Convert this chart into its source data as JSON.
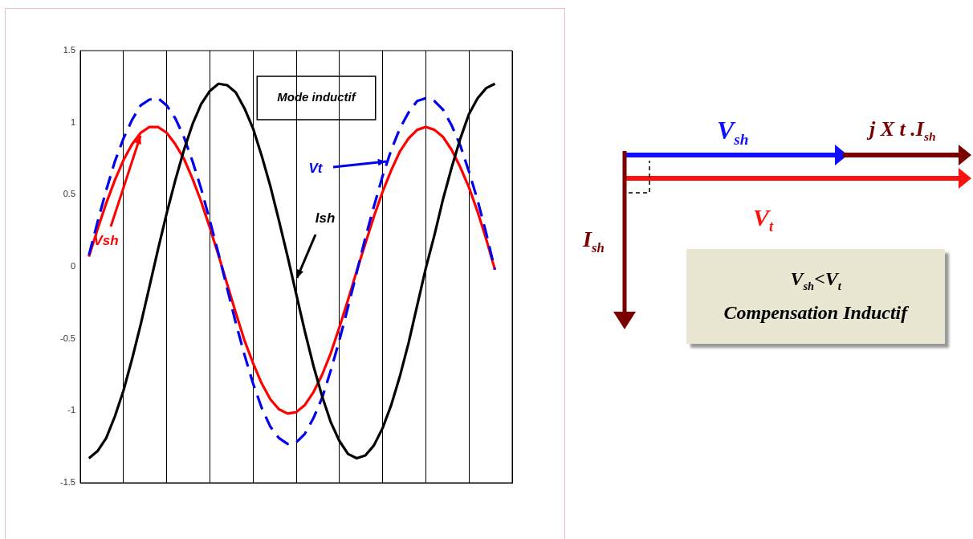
{
  "chart_data": {
    "type": "line",
    "categories": [
      null,
      null,
      null,
      null,
      null,
      null,
      null,
      null,
      null,
      null,
      null,
      null,
      null,
      null,
      null,
      null,
      null,
      null,
      null,
      null,
      null,
      null,
      null,
      null,
      null,
      null,
      null,
      null,
      null,
      null,
      null,
      null,
      null,
      null,
      null,
      null,
      null,
      null,
      null,
      null,
      null,
      null,
      null,
      null,
      null,
      null,
      null,
      null,
      null,
      null,
      null
    ],
    "ylim": [
      -1.5,
      1.5
    ],
    "yticks": [
      -1.5,
      -1,
      -0.5,
      0,
      0.5,
      1,
      1.5
    ],
    "tick_labels": "y",
    "grid": "x",
    "legend": false,
    "marker": "none",
    "series": [
      {
        "color": "#000000",
        "line_style": "solid",
        "values": [
          null,
          -1.33,
          -1.28,
          -1.19,
          -1.04,
          -0.86,
          -0.64,
          -0.4,
          -0.14,
          0.12,
          0.37,
          0.6,
          0.81,
          0.99,
          1.13,
          1.22,
          1.27,
          1.26,
          1.21,
          1.1,
          0.96,
          0.77,
          0.56,
          0.32,
          0.07,
          -0.19,
          -0.45,
          -0.69,
          -0.9,
          -1.08,
          -1.21,
          -1.3,
          -1.33,
          -1.31,
          -1.24,
          -1.12,
          -0.96,
          -0.76,
          -0.53,
          -0.27,
          -0.01,
          0.22,
          0.47,
          0.69,
          0.89,
          1.06,
          1.17,
          1.24,
          1.27,
          null,
          null
        ]
      },
      {
        "color": "#0000ee",
        "line_style": "dashed",
        "values": [
          null,
          0.08,
          0.31,
          0.53,
          0.73,
          0.89,
          1.02,
          1.12,
          1.16,
          1.17,
          1.12,
          1.03,
          0.9,
          0.73,
          0.54,
          0.32,
          0.09,
          -0.15,
          -0.39,
          -0.61,
          -0.81,
          -0.98,
          -1.11,
          -1.19,
          -1.23,
          -1.22,
          -1.16,
          -1.05,
          -0.91,
          -0.72,
          -0.51,
          -0.28,
          -0.04,
          0.2,
          0.42,
          0.63,
          0.81,
          0.96,
          1.07,
          1.15,
          1.17,
          1.15,
          1.09,
          0.98,
          0.84,
          0.66,
          0.46,
          0.23,
          -0.02,
          null,
          null
        ]
      },
      {
        "color": "#ff0000",
        "line_style": "solid",
        "values": [
          null,
          0.07,
          0.26,
          0.44,
          0.6,
          0.74,
          0.85,
          0.93,
          0.97,
          0.97,
          0.93,
          0.85,
          0.75,
          0.61,
          0.45,
          0.27,
          0.08,
          -0.12,
          -0.32,
          -0.51,
          -0.67,
          -0.81,
          -0.92,
          -0.99,
          -1.02,
          -1.01,
          -0.96,
          -0.87,
          -0.75,
          -0.6,
          -0.42,
          -0.23,
          -0.03,
          0.16,
          0.35,
          0.52,
          0.67,
          0.8,
          0.89,
          0.95,
          0.97,
          0.95,
          0.9,
          0.81,
          0.69,
          0.55,
          0.38,
          0.19,
          -0.02,
          null,
          null
        ]
      }
    ],
    "annotations": [
      "Mode inductif",
      "Vsh",
      "Vt",
      "Ish",
      "V$_{sh}$",
      "j X t .I$_{sh}$",
      "V$_{t}$",
      "I$_{sh}$",
      "V$_{sh}$<V$_{t}$",
      "Compensation Inductif"
    ]
  }
}
